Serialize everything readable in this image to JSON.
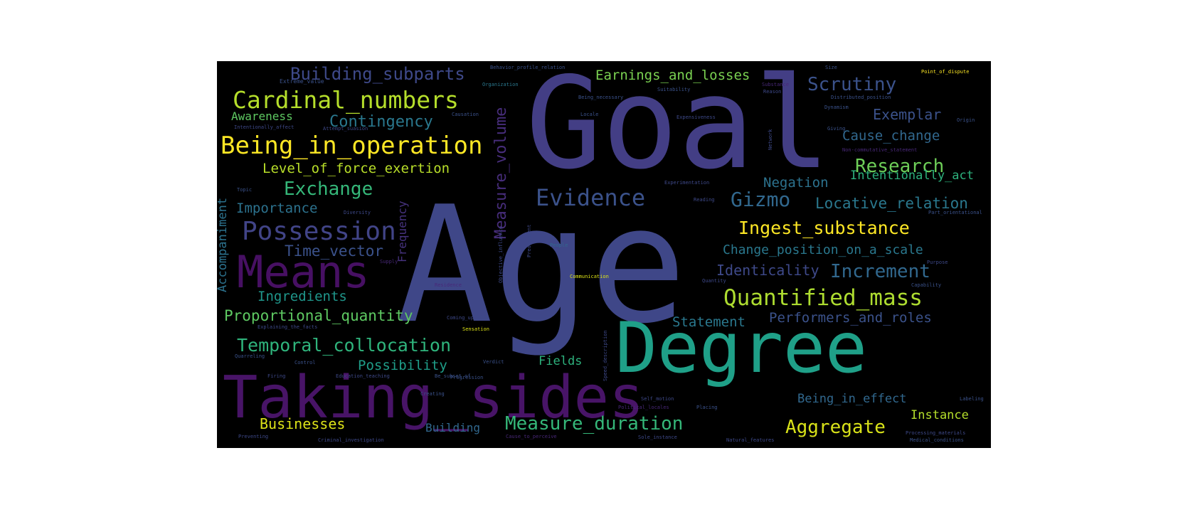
{
  "cloud": {
    "background": "#000000",
    "words": [
      {
        "text": "Age",
        "color": "#3f4788"
      },
      {
        "text": "Goal",
        "color": "#433e85"
      },
      {
        "text": "Degree",
        "color": "#1fa088"
      },
      {
        "text": "Taking_sides",
        "color": "#481467"
      },
      {
        "text": "Means",
        "color": "#471063"
      },
      {
        "text": "Building_subparts",
        "color": "#3e4989"
      },
      {
        "text": "Cardinal_numbers",
        "color": "#b5de2b"
      },
      {
        "text": "Being_in_operation",
        "color": "#fde725"
      },
      {
        "text": "Contingency",
        "color": "#2a788e"
      },
      {
        "text": "Awareness",
        "color": "#5ec962"
      },
      {
        "text": "Level_of_force_exertion",
        "color": "#b8de29"
      },
      {
        "text": "Exchange",
        "color": "#35b779"
      },
      {
        "text": "Importance",
        "color": "#2c728e"
      },
      {
        "text": "Possession",
        "color": "#414487"
      },
      {
        "text": "Time_vector",
        "color": "#3b528b"
      },
      {
        "text": "Ingredients",
        "color": "#1f968b"
      },
      {
        "text": "Proportional_quantity",
        "color": "#5ec962"
      },
      {
        "text": "Temporal_collocation",
        "color": "#2fb47c"
      },
      {
        "text": "Possibility",
        "color": "#1f9e89"
      },
      {
        "text": "Businesses",
        "color": "#dde318"
      },
      {
        "text": "Building",
        "color": "#31688e"
      },
      {
        "text": "Measure_duration",
        "color": "#35b779"
      },
      {
        "text": "Fields",
        "color": "#2db27d"
      },
      {
        "text": "Evidence",
        "color": "#3b528b"
      },
      {
        "text": "Measure_volume",
        "color": "#472d7b"
      },
      {
        "text": "Accompaniment",
        "color": "#2c728e"
      },
      {
        "text": "Frequency",
        "color": "#46327e"
      },
      {
        "text": "Earnings_and_losses",
        "color": "#7ad151"
      },
      {
        "text": "Scrutiny",
        "color": "#3b528b"
      },
      {
        "text": "Exemplar",
        "color": "#3b528b"
      },
      {
        "text": "Cause_change",
        "color": "#31688e"
      },
      {
        "text": "Research",
        "color": "#6ece58"
      },
      {
        "text": "Negation",
        "color": "#2c728e"
      },
      {
        "text": "Intentionally_act",
        "color": "#2db27d"
      },
      {
        "text": "Gizmo",
        "color": "#31688e"
      },
      {
        "text": "Locative_relation",
        "color": "#2a788e"
      },
      {
        "text": "Ingest_substance",
        "color": "#fde725"
      },
      {
        "text": "Change_position_on_a_scale",
        "color": "#2a788e"
      },
      {
        "text": "Identicality",
        "color": "#3e4989"
      },
      {
        "text": "Increment",
        "color": "#31688e"
      },
      {
        "text": "Quantified_mass",
        "color": "#addc30"
      },
      {
        "text": "Statement",
        "color": "#2a788e"
      },
      {
        "text": "Performers_and_roles",
        "color": "#3b528b"
      },
      {
        "text": "Being_in_effect",
        "color": "#31688e"
      },
      {
        "text": "Instance",
        "color": "#b5de2b"
      },
      {
        "text": "Aggregate",
        "color": "#d8e219"
      },
      {
        "text": "Extreme_value",
        "color": "#3b528b"
      },
      {
        "text": "Organization",
        "color": "#2a788e"
      },
      {
        "text": "Behavior_profile_relation",
        "color": "#3b528b"
      },
      {
        "text": "Being_necessary",
        "color": "#3b528b"
      },
      {
        "text": "Causation",
        "color": "#3b528b"
      },
      {
        "text": "Intentionally_affect",
        "color": "#3e4989"
      },
      {
        "text": "Attempt_suasion",
        "color": "#3e4989"
      },
      {
        "text": "Suitability",
        "color": "#3b528b"
      },
      {
        "text": "Locale",
        "color": "#3b528b"
      },
      {
        "text": "Expensiveness",
        "color": "#3e4989"
      },
      {
        "text": "Size",
        "color": "#3b528b"
      },
      {
        "text": "Substance",
        "color": "#482878"
      },
      {
        "text": "Reason",
        "color": "#3e4989"
      },
      {
        "text": "Point_of_dispute",
        "color": "#fde725"
      },
      {
        "text": "Distributed_position",
        "color": "#3b528b"
      },
      {
        "text": "Dynamism",
        "color": "#3b528b"
      },
      {
        "text": "Origin",
        "color": "#3b528b"
      },
      {
        "text": "Giving",
        "color": "#3b528b"
      },
      {
        "text": "Non-commutative_statement",
        "color": "#482878"
      },
      {
        "text": "Network",
        "color": "#3e4989"
      },
      {
        "text": "Topic",
        "color": "#3b528b"
      },
      {
        "text": "Diversity",
        "color": "#3e4989"
      },
      {
        "text": "Experimentation",
        "color": "#3e4989"
      },
      {
        "text": "Reading",
        "color": "#3e4989"
      },
      {
        "text": "Part_orientational",
        "color": "#3b528b"
      },
      {
        "text": "Predicament",
        "color": "#3e4989"
      },
      {
        "text": "Supply",
        "color": "#482878"
      },
      {
        "text": "People",
        "color": "#31688e"
      },
      {
        "text": "Communication",
        "color": "#dde318"
      },
      {
        "text": "Purpose",
        "color": "#3e4989"
      },
      {
        "text": "Capability",
        "color": "#3b528b"
      },
      {
        "text": "Quantity",
        "color": "#3e4989"
      },
      {
        "text": "Residence",
        "color": "#482878"
      },
      {
        "text": "Objective_influence",
        "color": "#3e4989"
      },
      {
        "text": "Coming_up_with",
        "color": "#3e4989"
      },
      {
        "text": "Sensation",
        "color": "#dde318"
      },
      {
        "text": "Explaining_the_facts",
        "color": "#3e4989"
      },
      {
        "text": "Quarreling",
        "color": "#3b528b"
      },
      {
        "text": "Control",
        "color": "#3b528b"
      },
      {
        "text": "Education_teaching",
        "color": "#3e4989"
      },
      {
        "text": "Verdict",
        "color": "#3b528b"
      },
      {
        "text": "Speed_description",
        "color": "#3e4989"
      },
      {
        "text": "Firing",
        "color": "#3e4989"
      },
      {
        "text": "Be_subset_of",
        "color": "#3b528b"
      },
      {
        "text": "Self_motion",
        "color": "#3e4989"
      },
      {
        "text": "Political_locales",
        "color": "#482878"
      },
      {
        "text": "Placing",
        "color": "#3b528b"
      },
      {
        "text": "Creating",
        "color": "#3b528b"
      },
      {
        "text": "Labeling",
        "color": "#3b528b"
      },
      {
        "text": "Processing_materials",
        "color": "#3e4989"
      },
      {
        "text": "Medical_conditions",
        "color": "#3b528b"
      },
      {
        "text": "Criminal_investigation",
        "color": "#3e4989"
      },
      {
        "text": "Cause_to_perceive",
        "color": "#482878"
      },
      {
        "text": "Sole_instance",
        "color": "#3e4989"
      },
      {
        "text": "Natural_features",
        "color": "#3e4989"
      },
      {
        "text": "Progression",
        "color": "#3b528b"
      },
      {
        "text": "Preventing",
        "color": "#3e4989"
      }
    ]
  }
}
